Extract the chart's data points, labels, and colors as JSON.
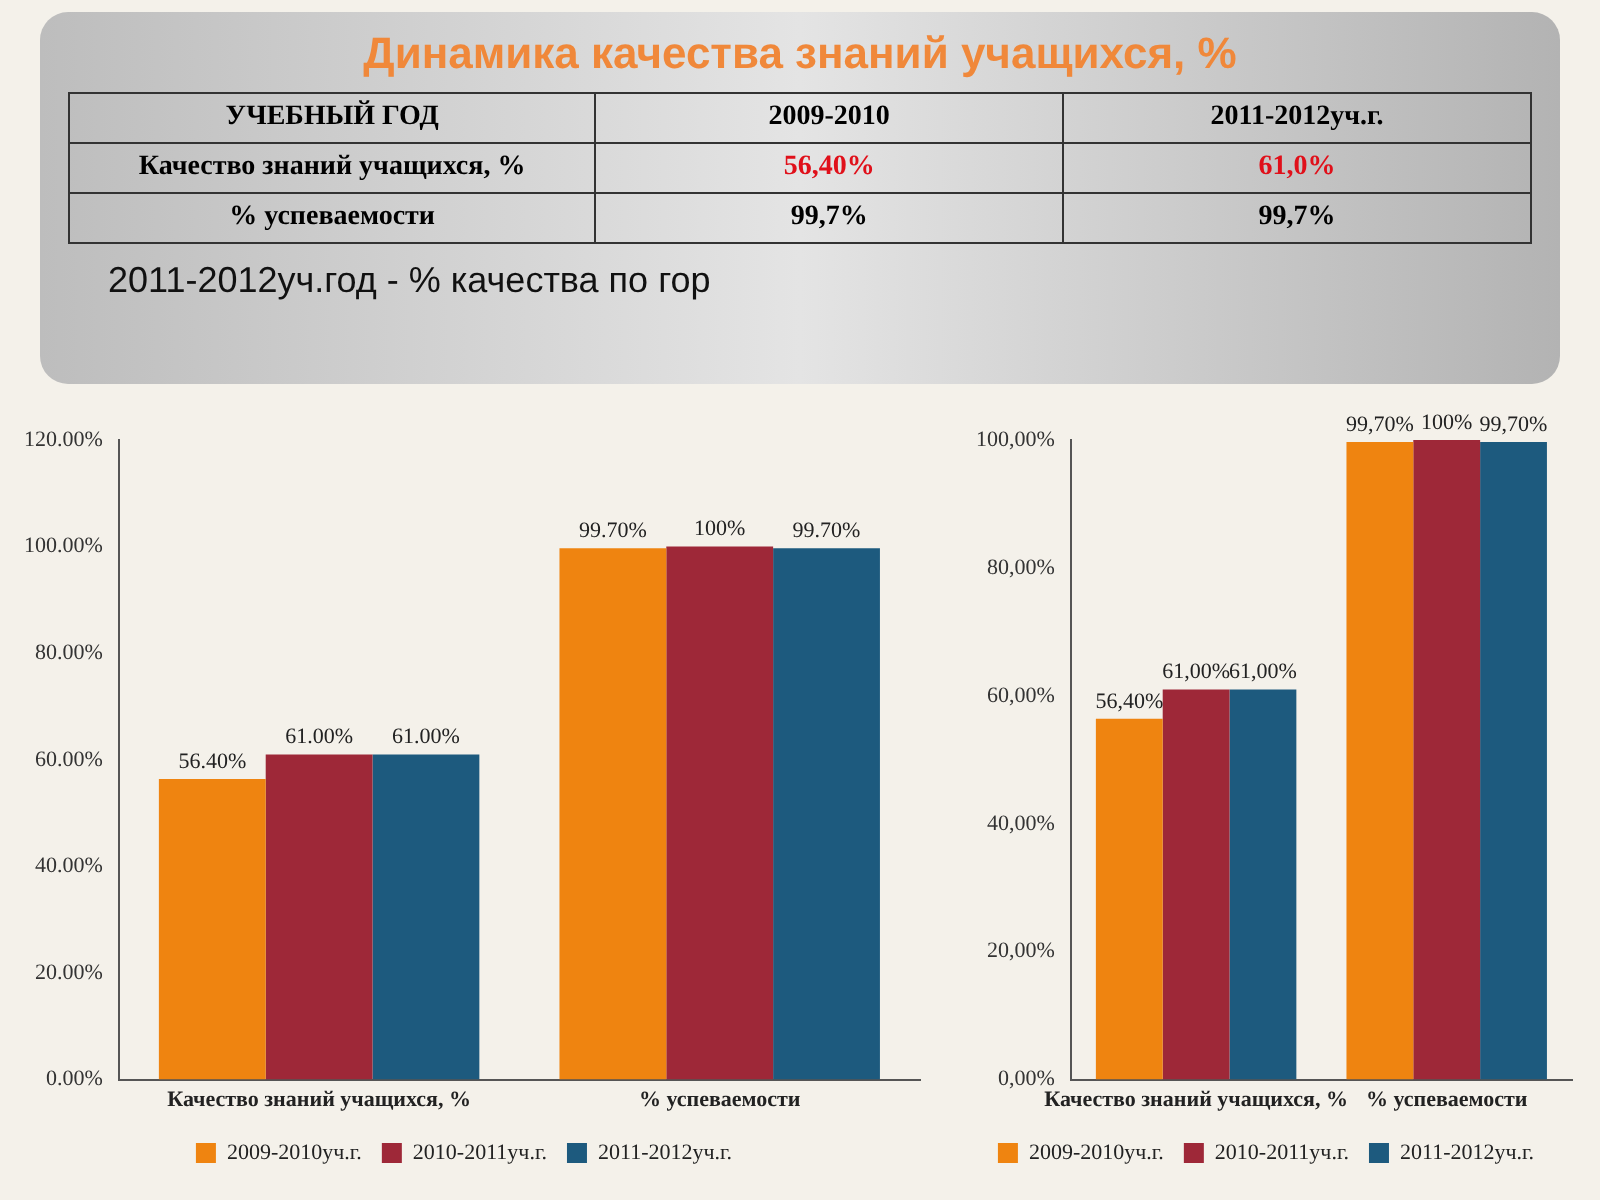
{
  "chart_data": [
    {
      "type": "other",
      "title": "Динамика качества знаний учащихся, %",
      "annotations": [
        "УЧЕБНЫЙ ГОД",
        "2009-2010",
        "2011-2012уч.г.",
        "Качество знаний учащихся, %",
        "56,40%",
        "61,0%",
        "% успеваемости",
        "99,7%",
        "99,7%",
        "2011-2012уч.год - % качества по гор"
      ]
    },
    {
      "type": "bar",
      "categories": [
        "Качество знаний учащихся, %",
        "% успеваемости"
      ],
      "series": [
        {
          "name": "2009-2010уч.г.",
          "color": "#ef8410",
          "values": [
            56.4,
            99.7
          ],
          "value_labels": [
            "56.40%",
            "99.70%"
          ]
        },
        {
          "name": "2010-2011уч.г.",
          "color": "#9e2838",
          "values": [
            61,
            100
          ],
          "value_labels": [
            "61.00%",
            "100%"
          ]
        },
        {
          "name": "2011-2012уч.г.",
          "color": "#1d5a7e",
          "values": [
            61,
            99.7
          ],
          "value_labels": [
            "61.00%",
            "99.70%"
          ]
        }
      ],
      "ylim": [
        0,
        120
      ],
      "yticks": [
        {
          "value": 0,
          "label": "0.00%"
        },
        {
          "value": 20,
          "label": "20.00%"
        },
        {
          "value": 40,
          "label": "40.00%"
        },
        {
          "value": 60,
          "label": "60.00%"
        },
        {
          "value": 80,
          "label": "80.00%"
        },
        {
          "value": 100,
          "label": "100.00%"
        },
        {
          "value": 120,
          "label": "120.00%"
        }
      ],
      "legend": "bottom"
    },
    {
      "type": "bar",
      "categories": [
        "Качество знаний учащихся, %",
        "% успеваемости"
      ],
      "series": [
        {
          "name": "2009-2010уч.г.",
          "color": "#ef8410",
          "values": [
            56.4,
            99.7
          ],
          "value_labels": [
            "56,40%",
            "99,70%"
          ]
        },
        {
          "name": "2010-2011уч.г.",
          "color": "#9e2838",
          "values": [
            61,
            100
          ],
          "value_labels": [
            "61,00%",
            "100%"
          ]
        },
        {
          "name": "2011-2012уч.г.",
          "color": "#1d5a7e",
          "values": [
            61,
            99.7
          ],
          "value_labels": [
            "61,00%",
            "99,70%"
          ]
        }
      ],
      "ylim": [
        0,
        100
      ],
      "yticks": [
        {
          "value": 0,
          "label": "0,00%"
        },
        {
          "value": 20,
          "label": "20,00%"
        },
        {
          "value": 40,
          "label": "40,00%"
        },
        {
          "value": 60,
          "label": "60,00%"
        },
        {
          "value": 80,
          "label": "80,00%"
        },
        {
          "value": 100,
          "label": "100,00%"
        }
      ],
      "legend": "bottom"
    }
  ]
}
